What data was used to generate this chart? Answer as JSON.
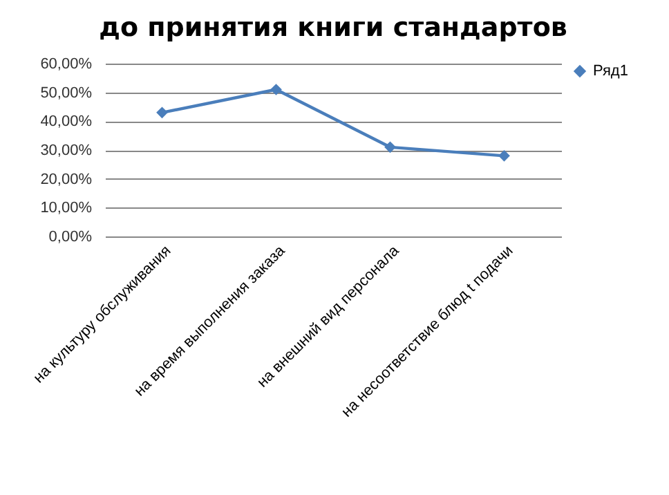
{
  "chart_data": {
    "type": "line",
    "title": "до принятия книги стандартов",
    "categories": [
      "на культуру обслуживания",
      "на время выполнения заказа",
      "на внешний вид персонала",
      "на несоответствие блюд t подачи"
    ],
    "series": [
      {
        "name": "Ряд1",
        "color": "#4a7ebb",
        "values": [
          43,
          51,
          31,
          28
        ]
      }
    ],
    "ylim": [
      0,
      60
    ],
    "yticks": [
      {
        "value": 0,
        "label": "0,00%"
      },
      {
        "value": 10,
        "label": "10,00%"
      },
      {
        "value": 20,
        "label": "20,00%"
      },
      {
        "value": 30,
        "label": "30,00%"
      },
      {
        "value": 40,
        "label": "40,00%"
      },
      {
        "value": 50,
        "label": "50,00%"
      },
      {
        "value": 60,
        "label": "60,00%"
      }
    ],
    "grid": "y",
    "legend": "right",
    "marker": "diamond",
    "line_style": "solid"
  }
}
